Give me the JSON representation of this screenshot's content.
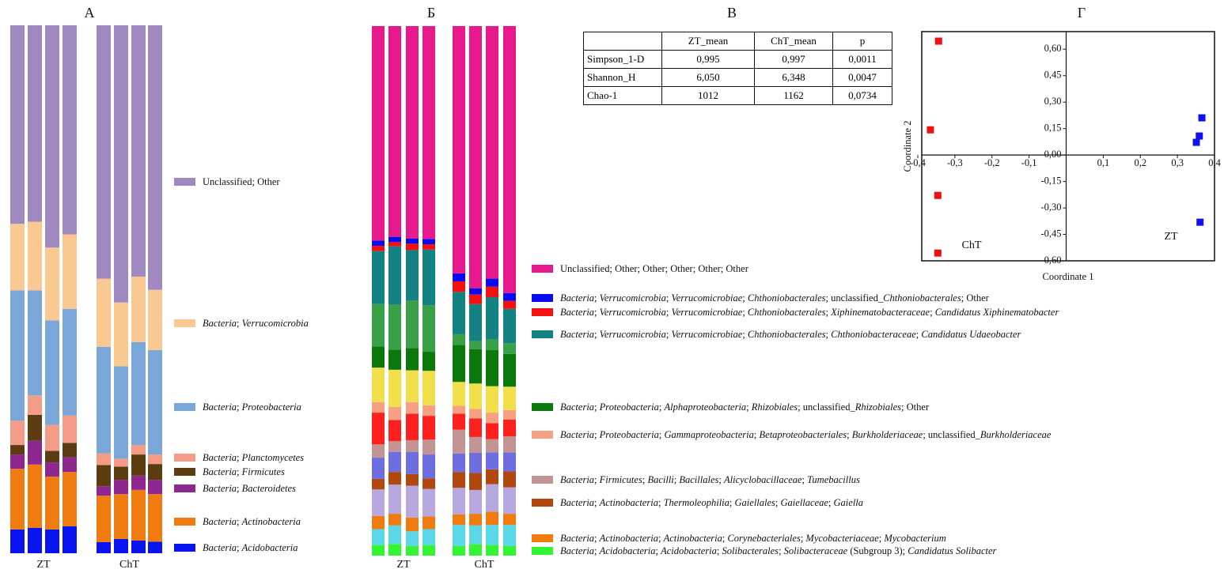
{
  "chart_data": [
    {
      "type": "bar",
      "stacked": true,
      "panel_label": "А",
      "categories": [
        "ZT",
        null,
        null,
        null,
        "ChT",
        null,
        null,
        null
      ],
      "ylim": [
        0,
        100
      ],
      "series": [
        {
          "name": "Bacteria; Acidobacteria",
          "color": "#0a14f0",
          "values": [
            4.5,
            4.8,
            4.5,
            5.1,
            2.1,
            2.7,
            2.4,
            2.2
          ]
        },
        {
          "name": "Bacteria; Actinobacteria",
          "color": "#f07c10",
          "values": [
            11.5,
            12.0,
            10.0,
            10.3,
            8.8,
            8.5,
            9.6,
            9.0
          ]
        },
        {
          "name": "Bacteria; Bacteroidetes",
          "color": "#8e2790",
          "values": [
            2.7,
            4.5,
            2.7,
            2.8,
            1.8,
            2.7,
            2.7,
            2.7
          ]
        },
        {
          "name": "Bacteria; Firmicutes",
          "color": "#5c3d12",
          "values": [
            1.8,
            4.9,
            2.2,
            2.7,
            4.0,
            2.5,
            4.0,
            3.0
          ]
        },
        {
          "name": "Bacteria; Planctomycetes",
          "color": "#f49c88",
          "values": [
            4.6,
            3.7,
            4.9,
            5.2,
            2.2,
            1.5,
            1.8,
            1.8
          ]
        },
        {
          "name": "Bacteria; Proteobacteria",
          "color": "#7ba7d8",
          "values": [
            24.7,
            19.9,
            19.8,
            20.2,
            20.2,
            17.5,
            19.5,
            19.8
          ]
        },
        {
          "name": "Bacteria; Verrucomicrobia",
          "color": "#fac991",
          "values": [
            12.6,
            13.0,
            13.8,
            14.1,
            12.9,
            12.1,
            12.4,
            11.4
          ]
        },
        {
          "name": "Unclassified; Other",
          "color": "#a088c0",
          "values": [
            37.6,
            37.2,
            42.1,
            39.6,
            48.0,
            52.5,
            47.6,
            50.1
          ]
        }
      ]
    },
    {
      "type": "bar",
      "stacked": true,
      "panel_label": "Б",
      "categories": [
        "ZT",
        null,
        null,
        null,
        "ChT",
        null,
        null,
        null
      ],
      "ylim": [
        0,
        100
      ],
      "series": [
        {
          "name": "Bacteria; Acidobacteria; Acidobacteria; Solibacterales; Solibacteraceae (Subgroup 3); Candidatus Solibacter",
          "color": "#33f533",
          "values": [
            2.0,
            2.2,
            1.8,
            2.0,
            1.8,
            2.2,
            2.0,
            1.8
          ]
        },
        {
          "color": "#5ad8e8",
          "values": [
            3.0,
            3.5,
            2.8,
            3.0,
            4.0,
            3.5,
            3.8,
            4.0
          ]
        },
        {
          "name": "Bacteria; Actinobacteria; Actinobacteria; Corynebacteriales; Mycobacteriaceae; Mycobacterium",
          "color": "#f07c10",
          "values": [
            2.5,
            2.2,
            2.6,
            2.4,
            2.0,
            2.2,
            2.5,
            2.1
          ]
        },
        {
          "color": "#b8a8e0",
          "values": [
            5.0,
            5.5,
            6.0,
            5.2,
            5.0,
            4.5,
            5.2,
            5.0
          ]
        },
        {
          "name": "Bacteria; Actinobacteria; Thermoleophilia; Gaiellales; Gaiellaceae; Gaiella",
          "color": "#b0480f",
          "values": [
            2.0,
            2.4,
            2.2,
            2.0,
            3.0,
            3.2,
            2.8,
            3.0
          ]
        },
        {
          "color": "#6e6ee0",
          "values": [
            4.0,
            3.8,
            4.2,
            4.5,
            3.5,
            3.8,
            3.2,
            3.6
          ]
        },
        {
          "name": "Bacteria; Firmicutes; Bacilli; Bacillales; Alicyclobacillaceae; Tumebacillus",
          "color": "#c29494",
          "values": [
            2.5,
            2.0,
            2.2,
            2.8,
            4.5,
            3.0,
            2.5,
            3.0
          ]
        },
        {
          "color": "#ff2020",
          "values": [
            6.0,
            4.0,
            5.0,
            4.5,
            3.0,
            3.5,
            3.0,
            3.2
          ]
        },
        {
          "name": "Bacteria; Proteobacteria; Gammaproteobacteria; Betaproteobacteriales; Burkholderiaceae; unclassified_Burkholderiaceae",
          "color": "#f7a082",
          "values": [
            2.0,
            2.5,
            2.2,
            2.0,
            1.5,
            1.8,
            2.0,
            1.8
          ]
        },
        {
          "color": "#f2e04a",
          "values": [
            6.5,
            7.0,
            6.0,
            6.5,
            4.5,
            4.8,
            5.0,
            4.4
          ]
        },
        {
          "name": "Bacteria; Proteobacteria; Alphaproteobacteria; Rhizobiales; unclassified_Rhizobiales; Other",
          "color": "#0b780b",
          "values": [
            4.0,
            3.8,
            4.2,
            3.6,
            7.0,
            6.5,
            6.8,
            6.2
          ]
        },
        {
          "color": "#3aa048",
          "values": [
            8.0,
            8.5,
            9.0,
            8.8,
            2.0,
            1.5,
            2.0,
            2.0
          ]
        },
        {
          "name": "Bacteria; Verrucomicrobia; Verrucomicrobiae; Chthoniobacterales; Chthoniobacteraceae; Candidatus Udaeobacter",
          "color": "#128283",
          "values": [
            10.0,
            11.0,
            9.5,
            10.5,
            8.0,
            7.0,
            8.0,
            6.5
          ]
        },
        {
          "name": "Bacteria; Verrucomicrobia; Verrucomicrobiae; Chthoniobacterales; Xiphinematobacteraceae; Candidatus Xiphinematobacter",
          "color": "#f51010",
          "values": [
            1.0,
            0.8,
            1.2,
            1.0,
            2.0,
            1.8,
            2.0,
            1.5
          ]
        },
        {
          "name": "Bacteria; Verrucomicrobia; Verrucomicrobiae; Chthoniobacterales; unclassified_Chthoniobacterales; Other",
          "color": "#0a0af0",
          "values": [
            1.0,
            1.0,
            1.0,
            1.0,
            1.5,
            1.2,
            1.5,
            1.5
          ]
        },
        {
          "name": "Unclassified; Other; Other; Other; Other; Other",
          "color": "#e8198c",
          "values": [
            40.5,
            39.8,
            40.1,
            40.2,
            46.7,
            49.5,
            47.7,
            50.4
          ]
        }
      ]
    },
    {
      "type": "scatter",
      "panel_label": "Г",
      "xlabel": "Coordinate 1",
      "ylabel": "Coordinate 2",
      "xlim": [
        -0.4,
        0.4
      ],
      "ylim": [
        -0.6,
        0.7
      ],
      "xticks": [
        {
          "value": -0.4,
          "label": "-0,4"
        },
        {
          "value": -0.3,
          "label": "-0,3"
        },
        {
          "value": -0.2,
          "label": "-0,2"
        },
        {
          "value": -0.1,
          "label": "-0,1"
        },
        {
          "value": 0.1,
          "label": "0,1"
        },
        {
          "value": 0.2,
          "label": "0,2"
        },
        {
          "value": 0.3,
          "label": "0,3"
        },
        {
          "value": 0.4,
          "label": "0,4"
        }
      ],
      "yticks": [
        {
          "value": 0.6,
          "label": "0,60"
        },
        {
          "value": 0.45,
          "label": "0,45"
        },
        {
          "value": 0.3,
          "label": "0,30"
        },
        {
          "value": 0.15,
          "label": "0,15"
        },
        {
          "value": 0,
          "label": "0,00"
        },
        {
          "value": -0.15,
          "label": "-0,15"
        },
        {
          "value": -0.3,
          "label": "-0,30"
        },
        {
          "value": -0.45,
          "label": "-0,45"
        },
        {
          "value": -0.6,
          "label": "-0,60"
        }
      ],
      "series": [
        {
          "name": "ChT",
          "color": "#ee1111",
          "x": [
            -0.344,
            -0.366,
            -0.346,
            -0.346
          ],
          "values": [
            0.646,
            0.143,
            -0.229,
            -0.556
          ]
        },
        {
          "name": "ZT",
          "color": "#1111ee",
          "x": [
            0.366,
            0.359,
            0.351,
            0.361
          ],
          "values": [
            0.211,
            0.108,
            0.072,
            -0.381
          ]
        }
      ]
    }
  ],
  "table": {
    "panel_label": "В",
    "columns": [
      "ZT_mean",
      "ChT_mean",
      "p"
    ],
    "rows": [
      {
        "label": "Simpson_1-D",
        "cells": [
          "0,995",
          "0,997",
          "0,0011"
        ]
      },
      {
        "label": "Shannon_H",
        "cells": [
          "6,050",
          "6,348",
          "0,0047"
        ]
      },
      {
        "label": "Chao-1",
        "cells": [
          "1012",
          "1162",
          "0,0734"
        ]
      }
    ]
  }
}
